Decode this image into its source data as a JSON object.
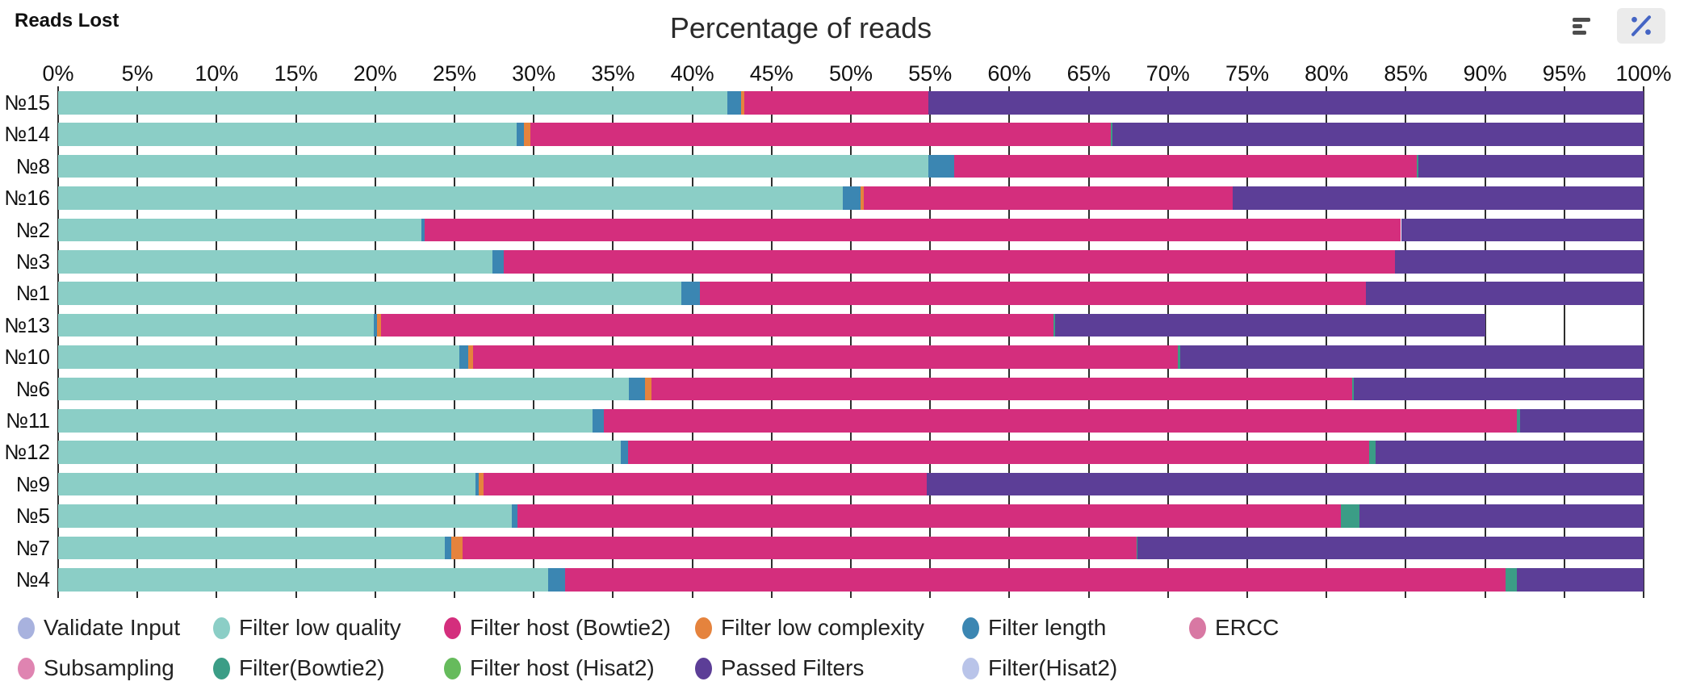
{
  "header": {
    "reads_lost_label": "Reads Lost",
    "title": "Percentage of reads"
  },
  "toolbar": {
    "count_toggle": "bar-chart-icon",
    "percent_toggle": "percent-icon",
    "active_toggle": "percent",
    "accent_color": "#4565c4",
    "icon_color": "#4d4d4d"
  },
  "chart_data": {
    "type": "bar",
    "orientation": "horizontal-stacked",
    "title": "Percentage of reads",
    "unit": "%",
    "axis": {
      "min": 0,
      "max": 100,
      "tick_step": 5,
      "tick_labels": [
        "0%",
        "5%",
        "10%",
        "15%",
        "20%",
        "25%",
        "30%",
        "35%",
        "40%",
        "45%",
        "50%",
        "55%",
        "60%",
        "65%",
        "70%",
        "75%",
        "80%",
        "85%",
        "90%",
        "95%",
        "100%"
      ]
    },
    "categories": [
      "№15",
      "№14",
      "№8",
      "№16",
      "№2",
      "№3",
      "№1",
      "№13",
      "№10",
      "№6",
      "№11",
      "№12",
      "№9",
      "№5",
      "№7",
      "№4"
    ],
    "series": [
      {
        "name": "Filter low quality",
        "color": "#8bcec6",
        "values": [
          42.2,
          28.9,
          54.9,
          49.5,
          22.9,
          27.4,
          39.3,
          19.9,
          25.3,
          36.0,
          33.7,
          35.5,
          26.3,
          28.6,
          24.4,
          30.9
        ]
      },
      {
        "name": "Filter length",
        "color": "#3b86b2",
        "values": [
          0.9,
          0.5,
          1.6,
          1.1,
          0.2,
          0.7,
          1.2,
          0.2,
          0.55,
          1.0,
          0.7,
          0.45,
          0.25,
          0.35,
          0.4,
          1.1
        ]
      },
      {
        "name": "Filter low complexity",
        "color": "#e5833d",
        "values": [
          0.2,
          0.4,
          0,
          0.2,
          0,
          0,
          0,
          0.25,
          0.3,
          0.4,
          0,
          0,
          0.3,
          0,
          0.7,
          0
        ]
      },
      {
        "name": "Filter host (Bowtie2)",
        "color": "#d42e7d",
        "values": [
          11.6,
          36.6,
          29.2,
          23.3,
          61.6,
          56.2,
          42.0,
          42.45,
          44.45,
          44.2,
          57.6,
          46.75,
          27.95,
          51.95,
          42.5,
          59.3
        ]
      },
      {
        "name": "Filter(Bowtie2)",
        "color": "#3b9d86",
        "values": [
          0,
          0.1,
          0.1,
          0,
          0,
          0,
          0,
          0.1,
          0.15,
          0.1,
          0.2,
          0.4,
          0,
          1.2,
          0.1,
          0.7
        ]
      },
      {
        "name": "Passed Filters",
        "color": "#5c3e97",
        "values": [
          45.1,
          33.5,
          14.2,
          25.9,
          15.3,
          15.7,
          17.5,
          27.1,
          29.25,
          18.3,
          7.8,
          16.9,
          45.2,
          17.9,
          31.9,
          8.0
        ]
      }
    ],
    "legend": {
      "position": "bottom",
      "rows": [
        [
          {
            "label": "Validate Input",
            "color": "#a8b2de"
          },
          {
            "label": "Filter low quality",
            "color": "#8bcec6"
          },
          {
            "label": "Filter host (Bowtie2)",
            "color": "#d42e7d"
          },
          {
            "label": "Filter low complexity",
            "color": "#e5833d"
          },
          {
            "label": "Filter length",
            "color": "#3b86b2"
          },
          {
            "label": "ERCC",
            "color": "#d878a3"
          }
        ],
        [
          {
            "label": "Subsampling",
            "color": "#df84b1"
          },
          {
            "label": "Filter(Bowtie2)",
            "color": "#3b9d86"
          },
          {
            "label": "Filter host (Hisat2)",
            "color": "#66bb5c"
          },
          {
            "label": "Passed Filters",
            "color": "#5c3e97"
          },
          {
            "label": "Filter(Hisat2)",
            "color": "#b9c4e9"
          }
        ]
      ]
    }
  }
}
